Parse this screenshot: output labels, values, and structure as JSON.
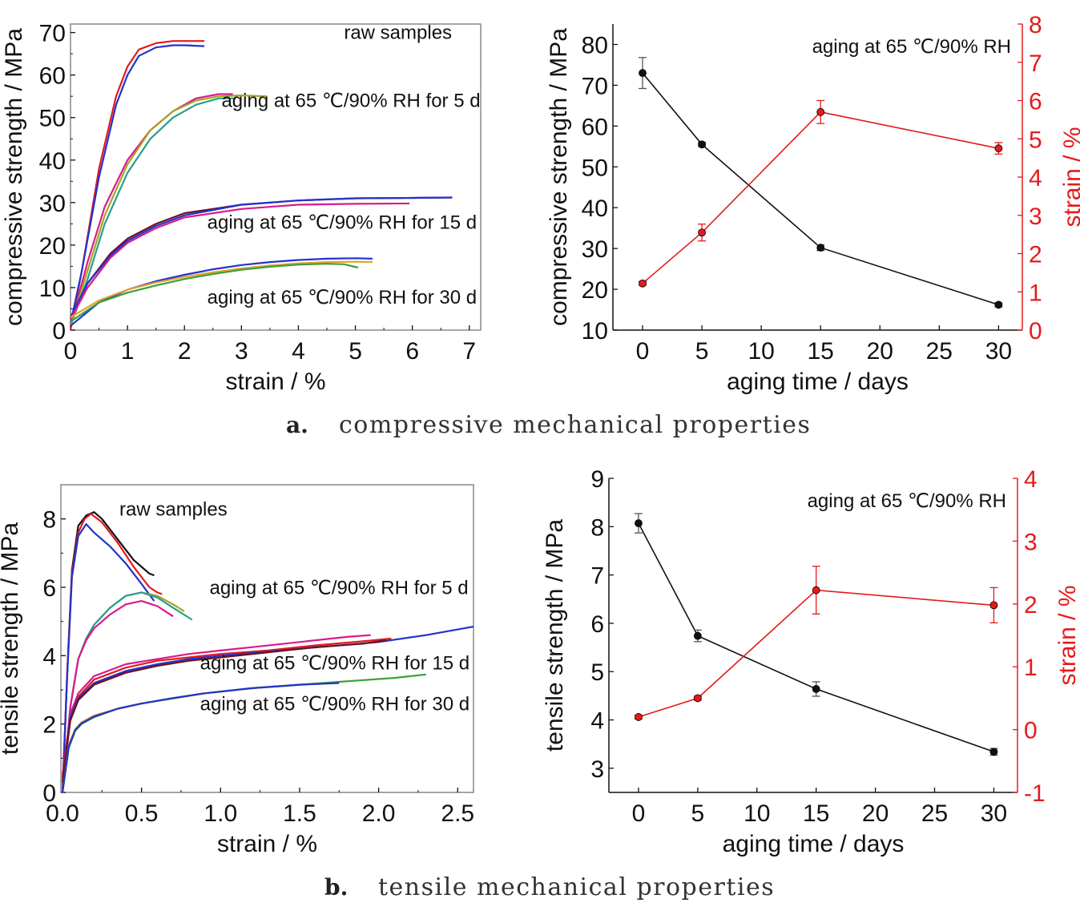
{
  "captions": {
    "a_letter": "a.",
    "a_text": "compressive mechanical properties",
    "b_letter": "b.",
    "b_text": "tensile mechanical properties"
  },
  "colors": {
    "black": "#111111",
    "red": "#e41a1c",
    "blue": "#2233cc",
    "magenta": "#d81b8c",
    "teal": "#2a9d8f",
    "olive": "#a4a324",
    "darkred": "#6b1020",
    "orange": "#e8a030",
    "green": "#3aa03a",
    "gray": "#555555"
  },
  "chart_data": [
    {
      "id": "a-left",
      "type": "line",
      "xlabel": "strain / %",
      "ylabel": "compressive strength / MPa",
      "xlim": [
        0,
        7.2
      ],
      "ylim": [
        0,
        72
      ],
      "xticks": [
        0,
        1,
        2,
        3,
        4,
        5,
        6,
        7
      ],
      "yticks": [
        0,
        10,
        20,
        30,
        40,
        50,
        60,
        70
      ],
      "annotations": [
        {
          "text": "raw samples",
          "x": 4.8,
          "y": 68.5
        },
        {
          "text": "aging at 65 ℃/90% RH for 5 d",
          "x": 2.65,
          "y": 52.5
        },
        {
          "text": "aging at 65 ℃/90% RH for 15 d",
          "x": 2.4,
          "y": 23.8
        },
        {
          "text": "aging at 65 ℃/90% RH for 30 d",
          "x": 2.4,
          "y": 6.2
        }
      ],
      "series": [
        {
          "color": "red",
          "x": [
            0,
            0.2,
            0.5,
            0.8,
            1.0,
            1.2,
            1.5,
            1.8,
            2.0,
            2.35
          ],
          "y": [
            0,
            14,
            38,
            55,
            62,
            66,
            67.5,
            68,
            68,
            68
          ]
        },
        {
          "color": "blue",
          "x": [
            0,
            0.2,
            0.5,
            0.8,
            1.0,
            1.2,
            1.5,
            1.8,
            2.0,
            2.35
          ],
          "y": [
            1.5,
            14,
            36,
            53,
            60,
            64.5,
            66.5,
            67,
            67,
            66.8
          ]
        },
        {
          "color": "magenta",
          "x": [
            0,
            0.3,
            0.6,
            1.0,
            1.4,
            1.8,
            2.2,
            2.6,
            2.85
          ],
          "y": [
            1,
            16,
            29,
            40,
            47,
            51.5,
            54.5,
            55.5,
            55.5
          ]
        },
        {
          "color": "teal",
          "x": [
            0,
            0.3,
            0.6,
            1.0,
            1.4,
            1.8,
            2.2,
            2.6,
            2.9
          ],
          "y": [
            1,
            12,
            25,
            37,
            45,
            50,
            53,
            54.5,
            54.5
          ]
        },
        {
          "color": "olive",
          "x": [
            0,
            0.3,
            0.6,
            1.0,
            1.4,
            1.8,
            2.2,
            2.6,
            3.0,
            3.45
          ],
          "y": [
            1,
            14,
            27,
            39,
            47,
            51.5,
            54,
            55,
            55.2,
            55
          ]
        },
        {
          "color": "darkred",
          "x": [
            0,
            0.3,
            0.7,
            1.0,
            1.5,
            2.0,
            3.0,
            4.0,
            5.0,
            6.0,
            6.7
          ],
          "y": [
            3,
            11,
            18,
            21.5,
            25,
            27.5,
            29.5,
            30.5,
            31,
            31.1,
            31.2
          ]
        },
        {
          "color": "blue",
          "x": [
            0,
            0.3,
            0.7,
            1.0,
            1.5,
            2.0,
            3.0,
            4.0,
            5.0,
            6.0,
            6.7
          ],
          "y": [
            3,
            11,
            17.5,
            21,
            24.5,
            27,
            29.5,
            30.5,
            31,
            31.1,
            31.2
          ]
        },
        {
          "color": "magenta",
          "x": [
            0,
            0.3,
            0.7,
            1.0,
            1.5,
            2.0,
            3.0,
            4.0,
            5.0,
            5.95
          ],
          "y": [
            2.5,
            10,
            17,
            20.5,
            24,
            26.5,
            28.5,
            29.5,
            29.7,
            29.8
          ]
        },
        {
          "color": "blue",
          "x": [
            0,
            0.5,
            1.0,
            1.5,
            2.0,
            2.5,
            3.0,
            3.5,
            4.0,
            4.5,
            5.0,
            5.3
          ],
          "y": [
            1,
            6.5,
            9.5,
            11.5,
            13,
            14.3,
            15.3,
            16,
            16.5,
            16.8,
            16.9,
            16.8
          ]
        },
        {
          "color": "orange",
          "x": [
            0,
            0.5,
            1.0,
            1.5,
            2.0,
            2.5,
            3.0,
            3.5,
            4.0,
            4.5,
            5.0,
            5.3
          ],
          "y": [
            3,
            7,
            9.5,
            11.2,
            12.5,
            13.6,
            14.5,
            15.2,
            15.7,
            16,
            16.1,
            16
          ]
        },
        {
          "color": "green",
          "x": [
            0,
            0.5,
            1.0,
            1.5,
            2.0,
            2.5,
            3.0,
            3.5,
            4.0,
            4.5,
            4.8,
            5.05
          ],
          "y": [
            2,
            6.5,
            8.8,
            10.5,
            12,
            13.2,
            14.2,
            14.9,
            15.4,
            15.6,
            15.5,
            14.7
          ]
        }
      ]
    },
    {
      "id": "a-right",
      "type": "line",
      "xlabel": "aging time / days",
      "ylabel": "compressive strength / MPa",
      "y2label": "strain / %",
      "xlim": [
        -2.5,
        32
      ],
      "ylim": [
        10,
        85
      ],
      "y2lim": [
        0,
        8
      ],
      "xticks": [
        0,
        5,
        10,
        15,
        20,
        25,
        30
      ],
      "yticks": [
        10,
        20,
        30,
        40,
        50,
        60,
        70,
        80
      ],
      "y2ticks": [
        0,
        1,
        2,
        3,
        4,
        5,
        6,
        7,
        8
      ],
      "annotation": "aging at 65 ℃/90% RH",
      "series": [
        {
          "axis": "left",
          "color": "black",
          "x": [
            0,
            5,
            15,
            30
          ],
          "y": [
            73,
            55.5,
            30.2,
            16.2
          ],
          "err": [
            3.8,
            0.5,
            0.7,
            0.5
          ]
        },
        {
          "axis": "right",
          "color": "red",
          "x": [
            0,
            5,
            15,
            30
          ],
          "y": [
            1.22,
            2.55,
            5.7,
            4.75
          ],
          "err": [
            0.05,
            0.22,
            0.3,
            0.15
          ]
        }
      ]
    },
    {
      "id": "b-left",
      "type": "line",
      "xlabel": "strain / %",
      "ylabel": "tensile strength / MPa",
      "xlim": [
        -0.01,
        2.6
      ],
      "ylim": [
        0,
        9
      ],
      "xticks": [
        0.0,
        0.5,
        1.0,
        1.5,
        2.0,
        2.5
      ],
      "xticklabels": [
        "0.0",
        "0.5",
        "1.0",
        "1.5",
        "2.0",
        "2.5"
      ],
      "yticks": [
        0,
        2,
        4,
        6,
        8
      ],
      "annotations": [
        {
          "text": "raw samples",
          "x": 0.36,
          "y": 8.1
        },
        {
          "text": "aging at 65 ℃/90% RH for 5 d",
          "x": 0.93,
          "y": 5.8
        },
        {
          "text": "aging at 65 ℃/90% RH for 15 d",
          "x": 0.87,
          "y": 3.6
        },
        {
          "text": "aging at 65 ℃/90% RH for 30 d",
          "x": 0.87,
          "y": 2.4
        }
      ],
      "series": [
        {
          "color": "black",
          "x": [
            0,
            0.03,
            0.06,
            0.1,
            0.15,
            0.2,
            0.25,
            0.35,
            0.45,
            0.55,
            0.58
          ],
          "y": [
            0,
            3.5,
            6.5,
            7.8,
            8.1,
            8.2,
            8.0,
            7.4,
            6.8,
            6.4,
            6.35
          ]
        },
        {
          "color": "red",
          "x": [
            0,
            0.03,
            0.06,
            0.1,
            0.14,
            0.18,
            0.25,
            0.35,
            0.45,
            0.55,
            0.6,
            0.63
          ],
          "y": [
            0,
            3.5,
            6.4,
            7.6,
            8.0,
            8.15,
            7.9,
            7.3,
            6.6,
            6.0,
            5.85,
            5.8
          ]
        },
        {
          "color": "blue",
          "x": [
            0,
            0.03,
            0.06,
            0.1,
            0.15,
            0.2,
            0.3,
            0.4,
            0.5,
            0.58
          ],
          "y": [
            0,
            3.4,
            6.3,
            7.5,
            7.85,
            7.6,
            7.2,
            6.7,
            6.1,
            5.6
          ]
        },
        {
          "color": "olive",
          "x": [
            0,
            0.05,
            0.1,
            0.15,
            0.2,
            0.3,
            0.4,
            0.5,
            0.6,
            0.7,
            0.77
          ],
          "y": [
            0,
            2.5,
            3.9,
            4.5,
            4.9,
            5.4,
            5.75,
            5.85,
            5.75,
            5.5,
            5.3
          ]
        },
        {
          "color": "teal",
          "x": [
            0,
            0.05,
            0.1,
            0.15,
            0.2,
            0.3,
            0.4,
            0.5,
            0.6,
            0.7,
            0.82
          ],
          "y": [
            0,
            2.5,
            3.9,
            4.5,
            4.9,
            5.4,
            5.75,
            5.85,
            5.7,
            5.4,
            5.05
          ]
        },
        {
          "color": "magenta",
          "x": [
            0,
            0.05,
            0.1,
            0.15,
            0.2,
            0.3,
            0.4,
            0.5,
            0.6,
            0.7
          ],
          "y": [
            0,
            2.5,
            3.9,
            4.45,
            4.8,
            5.2,
            5.5,
            5.6,
            5.45,
            5.15
          ]
        },
        {
          "color": "magenta",
          "x": [
            0,
            0.05,
            0.1,
            0.2,
            0.4,
            0.6,
            0.8,
            1.0,
            1.2,
            1.5,
            1.8,
            1.95
          ],
          "y": [
            0.5,
            2.3,
            2.9,
            3.4,
            3.75,
            3.9,
            4.05,
            4.15,
            4.25,
            4.4,
            4.55,
            4.6
          ]
        },
        {
          "color": "red",
          "x": [
            0,
            0.05,
            0.1,
            0.2,
            0.4,
            0.6,
            0.8,
            1.0,
            1.3,
            1.6,
            1.9,
            2.08
          ],
          "y": [
            0.4,
            2.2,
            2.8,
            3.3,
            3.65,
            3.85,
            3.95,
            4.05,
            4.15,
            4.3,
            4.42,
            4.5
          ]
        },
        {
          "color": "blue",
          "x": [
            0,
            0.05,
            0.1,
            0.2,
            0.4,
            0.6,
            0.8,
            1.0,
            1.5,
            2.0,
            2.3,
            2.6
          ],
          "y": [
            0.3,
            2.2,
            2.75,
            3.2,
            3.55,
            3.75,
            3.9,
            4.0,
            4.2,
            4.4,
            4.6,
            4.85
          ]
        },
        {
          "color": "darkred",
          "x": [
            0,
            0.05,
            0.1,
            0.2,
            0.4,
            0.6,
            0.8,
            1.0,
            1.3,
            1.6,
            1.9,
            2.05
          ],
          "y": [
            0.3,
            2.1,
            2.7,
            3.15,
            3.5,
            3.7,
            3.85,
            3.95,
            4.1,
            4.25,
            4.35,
            4.45
          ]
        },
        {
          "color": "orange",
          "x": [
            0,
            0.04,
            0.08,
            0.12,
            0.2,
            0.35,
            0.5,
            0.7,
            0.9,
            1.2,
            1.5,
            1.8
          ],
          "y": [
            0,
            1.4,
            1.85,
            2.05,
            2.25,
            2.45,
            2.6,
            2.75,
            2.9,
            3.05,
            3.15,
            3.25
          ]
        },
        {
          "color": "green",
          "x": [
            0,
            0.04,
            0.08,
            0.12,
            0.2,
            0.35,
            0.5,
            0.7,
            0.9,
            1.2,
            1.5,
            1.8,
            2.1,
            2.3
          ],
          "y": [
            0,
            1.3,
            1.8,
            2.0,
            2.2,
            2.45,
            2.6,
            2.75,
            2.9,
            3.05,
            3.15,
            3.25,
            3.35,
            3.45
          ]
        },
        {
          "color": "blue",
          "x": [
            0,
            0.04,
            0.08,
            0.12,
            0.2,
            0.35,
            0.5,
            0.7,
            0.9,
            1.2,
            1.5,
            1.75
          ],
          "y": [
            0,
            1.35,
            1.82,
            2.02,
            2.22,
            2.45,
            2.6,
            2.76,
            2.9,
            3.05,
            3.15,
            3.2
          ]
        }
      ]
    },
    {
      "id": "b-right",
      "type": "line",
      "xlabel": "aging time / days",
      "ylabel": "tensile strength / MPa",
      "y2label": "strain / %",
      "xlim": [
        -2.5,
        32
      ],
      "ylim": [
        2.5,
        9
      ],
      "y2lim": [
        -1,
        4
      ],
      "xticks": [
        0,
        5,
        10,
        15,
        20,
        25,
        30
      ],
      "yticks": [
        3,
        4,
        5,
        6,
        7,
        8,
        9
      ],
      "y2ticks": [
        -1,
        0,
        1,
        2,
        3,
        4
      ],
      "annotation": "aging at 65 ℃/90% RH",
      "series": [
        {
          "axis": "left",
          "color": "black",
          "x": [
            0,
            5,
            15,
            30
          ],
          "y": [
            8.07,
            5.74,
            4.64,
            3.34
          ],
          "err": [
            0.2,
            0.12,
            0.15,
            0.07
          ]
        },
        {
          "axis": "right",
          "color": "red",
          "x": [
            0,
            5,
            15,
            30
          ],
          "y": [
            0.2,
            0.5,
            2.22,
            1.98
          ],
          "err": [
            0.03,
            0.03,
            0.38,
            0.28
          ]
        }
      ]
    }
  ]
}
